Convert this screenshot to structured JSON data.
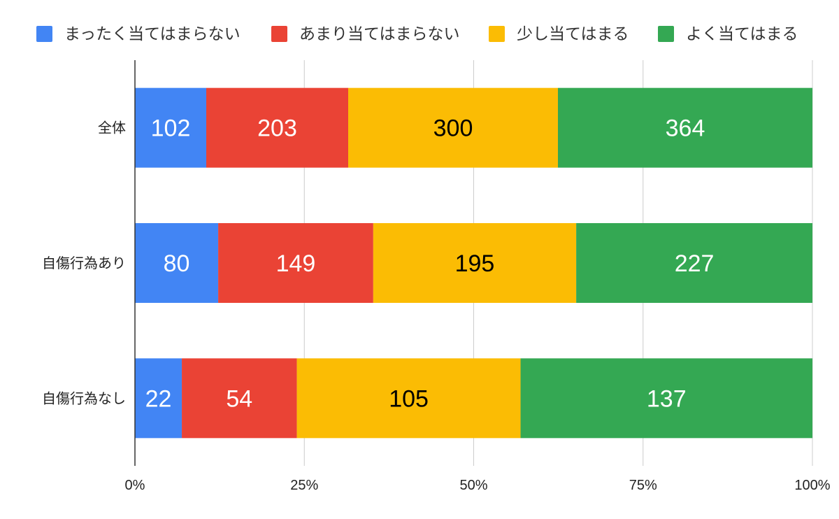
{
  "chart_data": {
    "type": "bar",
    "orientation": "horizontal",
    "stacked": "percent",
    "categories": [
      "全体",
      "自傷行為あり",
      "自傷行為なし"
    ],
    "series": [
      {
        "name": "まったく当てはまらない",
        "values": [
          102,
          80,
          22
        ],
        "color": "#4285F4",
        "label_color": "#ffffff"
      },
      {
        "name": "あまり当てはまらない",
        "values": [
          203,
          149,
          54
        ],
        "color": "#EA4335",
        "label_color": "#ffffff"
      },
      {
        "name": "少し当てはまる",
        "values": [
          300,
          195,
          105
        ],
        "color": "#FBBC04",
        "label_color": "#000000"
      },
      {
        "name": "よく当てはまる",
        "values": [
          364,
          227,
          137
        ],
        "color": "#34A853",
        "label_color": "#ffffff"
      }
    ],
    "x_ticks": [
      "0%",
      "25%",
      "50%",
      "75%",
      "100%"
    ],
    "xlim": [
      0,
      100
    ],
    "grid": true,
    "legend_position": "top",
    "title": "",
    "xlabel": "",
    "ylabel": ""
  }
}
